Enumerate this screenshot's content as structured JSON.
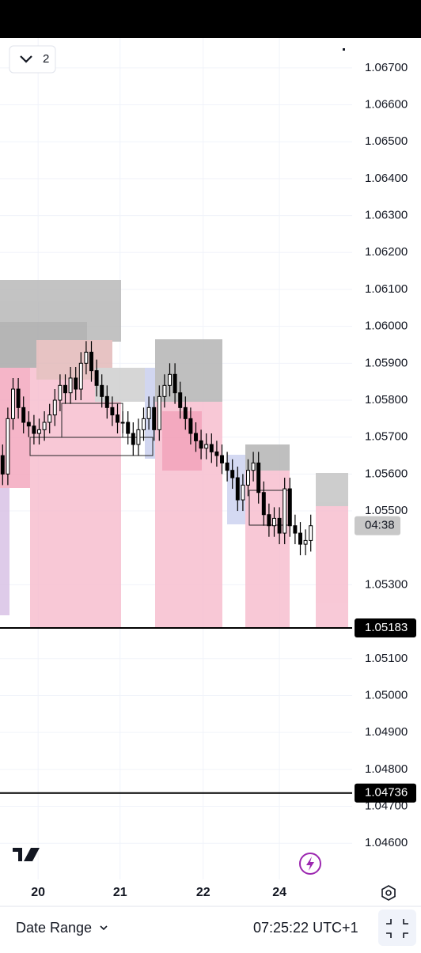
{
  "indicator_count": "2",
  "date_range": "Date Range",
  "clock": "07:25:22 UTC+1",
  "chart_data": {
    "type": "candlestick",
    "xlim": [
      0,
      60
    ],
    "xticks": [
      {
        "value": 7.3,
        "label": "20"
      },
      {
        "value": 23,
        "label": "21"
      },
      {
        "value": 38.9,
        "label": "22"
      },
      {
        "value": 53.5,
        "label": "24"
      }
    ],
    "ylim": [
      1.04502,
      1.06781
    ],
    "yticks": [
      {
        "value": 1.067,
        "label": "1.06700"
      },
      {
        "value": 1.066,
        "label": "1.06600"
      },
      {
        "value": 1.065,
        "label": "1.06500"
      },
      {
        "value": 1.064,
        "label": "1.06400"
      },
      {
        "value": 1.063,
        "label": "1.06300"
      },
      {
        "value": 1.062,
        "label": "1.06200"
      },
      {
        "value": 1.061,
        "label": "1.06100"
      },
      {
        "value": 1.06,
        "label": "1.06000"
      },
      {
        "value": 1.059,
        "label": "1.05900"
      },
      {
        "value": 1.058,
        "label": "1.05800"
      },
      {
        "value": 1.057,
        "label": "1.05700"
      },
      {
        "value": 1.056,
        "label": "1.05600"
      },
      {
        "value": 1.055,
        "label": "1.05500"
      },
      {
        "value": 1.053,
        "label": "1.05300"
      },
      {
        "value": 1.051,
        "label": "1.05100"
      },
      {
        "value": 1.05,
        "label": "1.05000"
      },
      {
        "value": 1.049,
        "label": "1.04900"
      },
      {
        "value": 1.048,
        "label": "1.04800"
      },
      {
        "value": 1.047,
        "label": "1.04700"
      },
      {
        "value": 1.046,
        "label": "1.04600"
      }
    ],
    "grid": true,
    "up_color": "#ffffff",
    "down_color": "#000000",
    "wick_color": "#000000",
    "open": [
      1.0565,
      1.056,
      1.0575,
      1.0583,
      1.0578,
      1.0574,
      1.0573,
      1.0571,
      1.0572,
      1.0574,
      1.0576,
      1.058,
      1.0584,
      1.0582,
      1.0586,
      1.0583,
      1.059,
      1.0593,
      1.0588,
      1.0584,
      1.0581,
      1.0578,
      1.0576,
      1.0574,
      1.0574,
      1.0571,
      1.0568,
      1.0572,
      1.0575,
      1.0578,
      1.0572,
      1.0581,
      1.0584,
      1.0587,
      1.0582,
      1.0578,
      1.0575,
      1.0571,
      1.0569,
      1.0567,
      1.0568,
      1.0566,
      1.0565,
      1.0563,
      1.0561,
      1.0559,
      1.0553,
      1.0557,
      1.0561,
      1.0563,
      1.0555,
      1.0549,
      1.0546,
      1.0548,
      1.0544,
      1.0556,
      1.0546,
      1.0544,
      1.0541,
      1.0542
    ],
    "high": [
      1.0568,
      1.0578,
      1.0586,
      1.0586,
      1.0581,
      1.0577,
      1.0576,
      1.0575,
      1.0577,
      1.0579,
      1.0583,
      1.0587,
      1.0587,
      1.0589,
      1.0589,
      1.0593,
      1.0596,
      1.0596,
      1.0591,
      1.0587,
      1.0584,
      1.0581,
      1.0579,
      1.0577,
      1.0577,
      1.0574,
      1.0575,
      1.0578,
      1.0581,
      1.0581,
      1.0584,
      1.0587,
      1.059,
      1.059,
      1.0585,
      1.0581,
      1.0578,
      1.0574,
      1.0572,
      1.0571,
      1.0571,
      1.0569,
      1.0568,
      1.0566,
      1.0564,
      1.0562,
      1.056,
      1.0564,
      1.0566,
      1.0566,
      1.0558,
      1.0552,
      1.0551,
      1.0551,
      1.0559,
      1.0559,
      1.0549,
      1.0547,
      1.0545,
      1.0549
    ],
    "low": [
      1.0557,
      1.0557,
      1.0572,
      1.0575,
      1.0571,
      1.057,
      1.0568,
      1.0568,
      1.0569,
      1.0571,
      1.0573,
      1.0577,
      1.0579,
      1.0579,
      1.058,
      1.058,
      1.0587,
      1.0585,
      1.0581,
      1.0578,
      1.0575,
      1.0573,
      1.0571,
      1.0571,
      1.0568,
      1.0565,
      1.0565,
      1.0569,
      1.0572,
      1.0569,
      1.0569,
      1.0578,
      1.0581,
      1.0579,
      1.0575,
      1.0572,
      1.0568,
      1.0566,
      1.0564,
      1.0564,
      1.0563,
      1.0562,
      1.056,
      1.0558,
      1.0556,
      1.055,
      1.055,
      1.0554,
      1.0558,
      1.0552,
      1.0546,
      1.0543,
      1.0543,
      1.0541,
      1.0541,
      1.0543,
      1.0541,
      1.0538,
      1.0538,
      1.0539
    ],
    "close": [
      1.056,
      1.0575,
      1.0583,
      1.0578,
      1.0574,
      1.0573,
      1.0571,
      1.0572,
      1.0574,
      1.0576,
      1.058,
      1.0584,
      1.0582,
      1.0586,
      1.0583,
      1.059,
      1.0593,
      1.0588,
      1.0584,
      1.0581,
      1.0578,
      1.0576,
      1.0574,
      1.0574,
      1.0571,
      1.0568,
      1.0572,
      1.0575,
      1.0578,
      1.0572,
      1.0581,
      1.0584,
      1.0587,
      1.0582,
      1.0578,
      1.0575,
      1.0571,
      1.0569,
      1.0567,
      1.0568,
      1.0566,
      1.0565,
      1.0563,
      1.0561,
      1.0559,
      1.0553,
      1.0557,
      1.0561,
      1.0563,
      1.0555,
      1.0549,
      1.0546,
      1.0548,
      1.0544,
      1.0556,
      1.0546,
      1.0544,
      1.0541,
      1.0542,
      1.0546
    ],
    "price_lines": [
      {
        "value": 1.05183,
        "label": "1.05183"
      },
      {
        "value": 1.04736,
        "label": "1.04736"
      }
    ],
    "countdown": "04:38"
  }
}
